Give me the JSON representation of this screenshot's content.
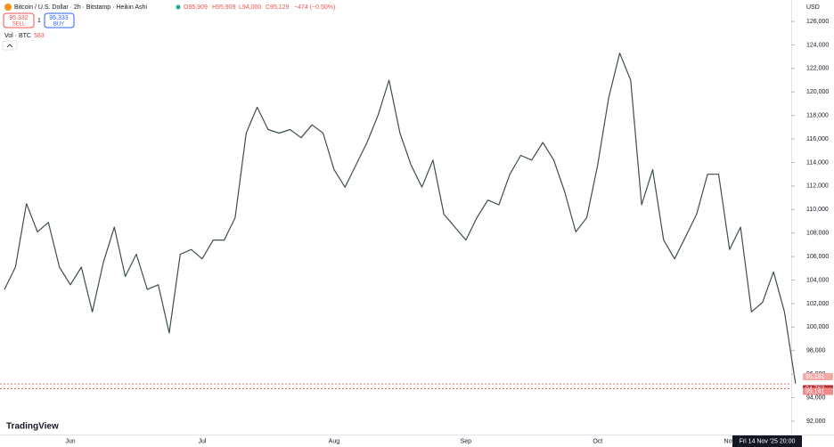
{
  "chart_data": {
    "type": "line",
    "title": "Bitcoin / U.S. Dollar · 2h · Bitstamp · Heikin Ashi",
    "ohlc": [
      "O95,909",
      "H95,909",
      "L94,000",
      "C95,129",
      "−474 (−0.50%)"
    ],
    "sell": {
      "price": "95,332",
      "label": "SELL"
    },
    "buy": {
      "price": "95,333",
      "label": "BUY"
    },
    "quantity": "1",
    "volume_label": "Vol · BTC",
    "volume_value": "583",
    "currency": "USD",
    "cursor_time": "Fri 14 Nov '25 20:00",
    "brand": "TradingView",
    "categories": [
      null,
      null,
      null,
      null,
      null,
      null,
      "Jun",
      null,
      null,
      null,
      null,
      null,
      null,
      null,
      null,
      null,
      null,
      null,
      "Jul",
      null,
      null,
      null,
      null,
      null,
      null,
      null,
      null,
      null,
      null,
      null,
      "Aug",
      null,
      null,
      null,
      null,
      null,
      null,
      null,
      null,
      null,
      null,
      null,
      "Sep",
      null,
      null,
      null,
      null,
      null,
      null,
      null,
      null,
      null,
      null,
      null,
      "Oct",
      null,
      null,
      null,
      null,
      null,
      null,
      null,
      null,
      null,
      null,
      null,
      "Nov",
      null,
      null,
      null,
      null,
      null,
      null
    ],
    "series": [
      {
        "name": "BTCUSD",
        "color": "#3d4f4a",
        "values": [
          103200,
          105100,
          110500,
          108100,
          108900,
          105100,
          103600,
          105100,
          101300,
          105500,
          108500,
          104300,
          106200,
          103200,
          103600,
          99500,
          106200,
          106600,
          105800,
          107400,
          107400,
          109300,
          116500,
          118700,
          116800,
          116500,
          116800,
          116100,
          117200,
          116500,
          113400,
          111900,
          113800,
          115700,
          118000,
          121000,
          116500,
          113800,
          111900,
          114200,
          109600,
          108500,
          107400,
          109300,
          110800,
          110400,
          113000,
          114600,
          114200,
          115700,
          114200,
          111500,
          108100,
          109300,
          113800,
          119500,
          123300,
          121000,
          110400,
          113400,
          107400,
          105800,
          107700,
          109600,
          113000,
          113000,
          106600,
          108500,
          101300,
          102100,
          104700,
          101300,
          95200
        ]
      }
    ],
    "price_lines": [
      {
        "value": 95181,
        "label": "95,181",
        "color": "#f7a9a8"
      },
      {
        "value": 94762,
        "label": "94,762",
        "color": "#b2312f"
      },
      {
        "value": 95141,
        "label": "95,141",
        "color": "#f28b88"
      }
    ],
    "ylim": [
      90860,
      127820
    ],
    "yticks": [
      {
        "value": 92000,
        "label": "92,000"
      },
      {
        "value": 94000,
        "label": "94,000"
      },
      {
        "value": 96000,
        "label": "96,000"
      },
      {
        "value": 98000,
        "label": "98,000"
      },
      {
        "value": 100000,
        "label": "100,000"
      },
      {
        "value": 102000,
        "label": "102,000"
      },
      {
        "value": 104000,
        "label": "104,000"
      },
      {
        "value": 106000,
        "label": "106,000"
      },
      {
        "value": 108000,
        "label": "108,000"
      },
      {
        "value": 110000,
        "label": "110,000"
      },
      {
        "value": 112000,
        "label": "112,000"
      },
      {
        "value": 114000,
        "label": "114,000"
      },
      {
        "value": 116000,
        "label": "116,000"
      },
      {
        "value": 118000,
        "label": "118,000"
      },
      {
        "value": 120000,
        "label": "120,000"
      },
      {
        "value": 122000,
        "label": "122,000"
      },
      {
        "value": 124000,
        "label": "124,000"
      },
      {
        "value": 126000,
        "label": "126,000"
      }
    ],
    "grid": false
  }
}
